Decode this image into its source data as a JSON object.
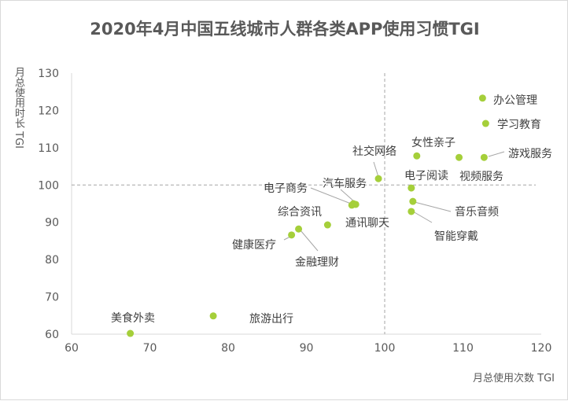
{
  "chart_data": {
    "type": "scatter",
    "title": "2020年4月中国五线城市人群各类APP使用习惯TGI",
    "xlabel": "月总使用次数 TGI",
    "ylabel": "月总使用时长 TGI",
    "xlim": [
      60,
      120
    ],
    "ylim": [
      60,
      130
    ],
    "xticks": [
      60,
      70,
      80,
      90,
      100,
      110,
      120
    ],
    "yticks": [
      60,
      70,
      80,
      90,
      100,
      110,
      120,
      130
    ],
    "reference_lines": {
      "x": 100,
      "y": 100
    },
    "grid": false,
    "point_color": "#a5cf3a",
    "points": [
      {
        "label": "办公管理",
        "x": 112.5,
        "y": 123.3
      },
      {
        "label": "学习教育",
        "x": 112.9,
        "y": 116.5
      },
      {
        "label": "游戏服务",
        "x": 112.7,
        "y": 107.4
      },
      {
        "label": "视频服务",
        "x": 109.5,
        "y": 107.4
      },
      {
        "label": "女性亲子",
        "x": 104.1,
        "y": 107.8
      },
      {
        "label": "社交网络",
        "x": 99.2,
        "y": 101.7
      },
      {
        "label": "电子阅读",
        "x": 103.4,
        "y": 99.2
      },
      {
        "label": "音乐音频",
        "x": 103.6,
        "y": 95.6
      },
      {
        "label": "智能穿戴",
        "x": 103.4,
        "y": 92.9
      },
      {
        "label": "汽车服务",
        "x": 96.3,
        "y": 94.8
      },
      {
        "label": "电子商务",
        "x": 95.8,
        "y": 94.6
      },
      {
        "label": "综合资讯",
        "x": 96.0,
        "y": 95.0
      },
      {
        "label": "通讯聊天",
        "x": 92.7,
        "y": 89.3
      },
      {
        "label": "健康医疗",
        "x": 88.1,
        "y": 86.6
      },
      {
        "label": "金融理财",
        "x": 89.0,
        "y": 88.2
      },
      {
        "label": "旅游出行",
        "x": 78.1,
        "y": 64.9
      },
      {
        "label": "美食外卖",
        "x": 67.5,
        "y": 60.2
      }
    ]
  }
}
